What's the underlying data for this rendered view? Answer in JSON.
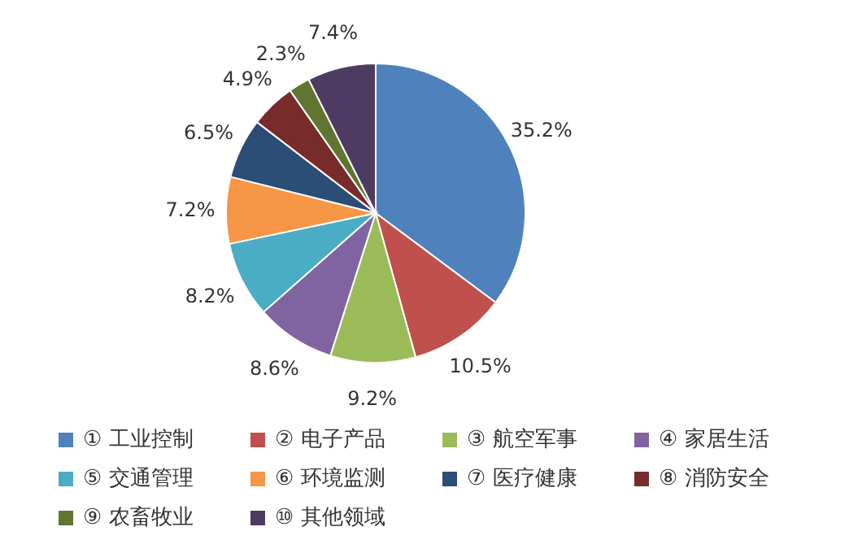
{
  "chart_data": {
    "type": "pie",
    "categories": [
      "① 工业控制",
      "② 电子产品",
      "③ 航空军事",
      "④ 家居生活",
      "⑤ 交通管理",
      "⑥ 环境监测",
      "⑦ 医疗健康",
      "⑧ 消防安全",
      "⑨ 农畜牧业",
      "⑩ 其他领域"
    ],
    "values": [
      35.2,
      10.5,
      9.2,
      8.6,
      8.2,
      7.2,
      6.5,
      4.9,
      2.3,
      7.4
    ],
    "value_labels": [
      "35.2%",
      "10.5%",
      "9.2%",
      "8.6%",
      "8.2%",
      "7.2%",
      "6.5%",
      "4.9%",
      "2.3%",
      "7.4%"
    ],
    "colors": [
      "#4f81bd",
      "#c0504d",
      "#9bbb59",
      "#8064a2",
      "#4bacc6",
      "#f79646",
      "#2c4d75",
      "#772c2a",
      "#5f7530",
      "#4d3b62"
    ],
    "legend": "bottom"
  }
}
